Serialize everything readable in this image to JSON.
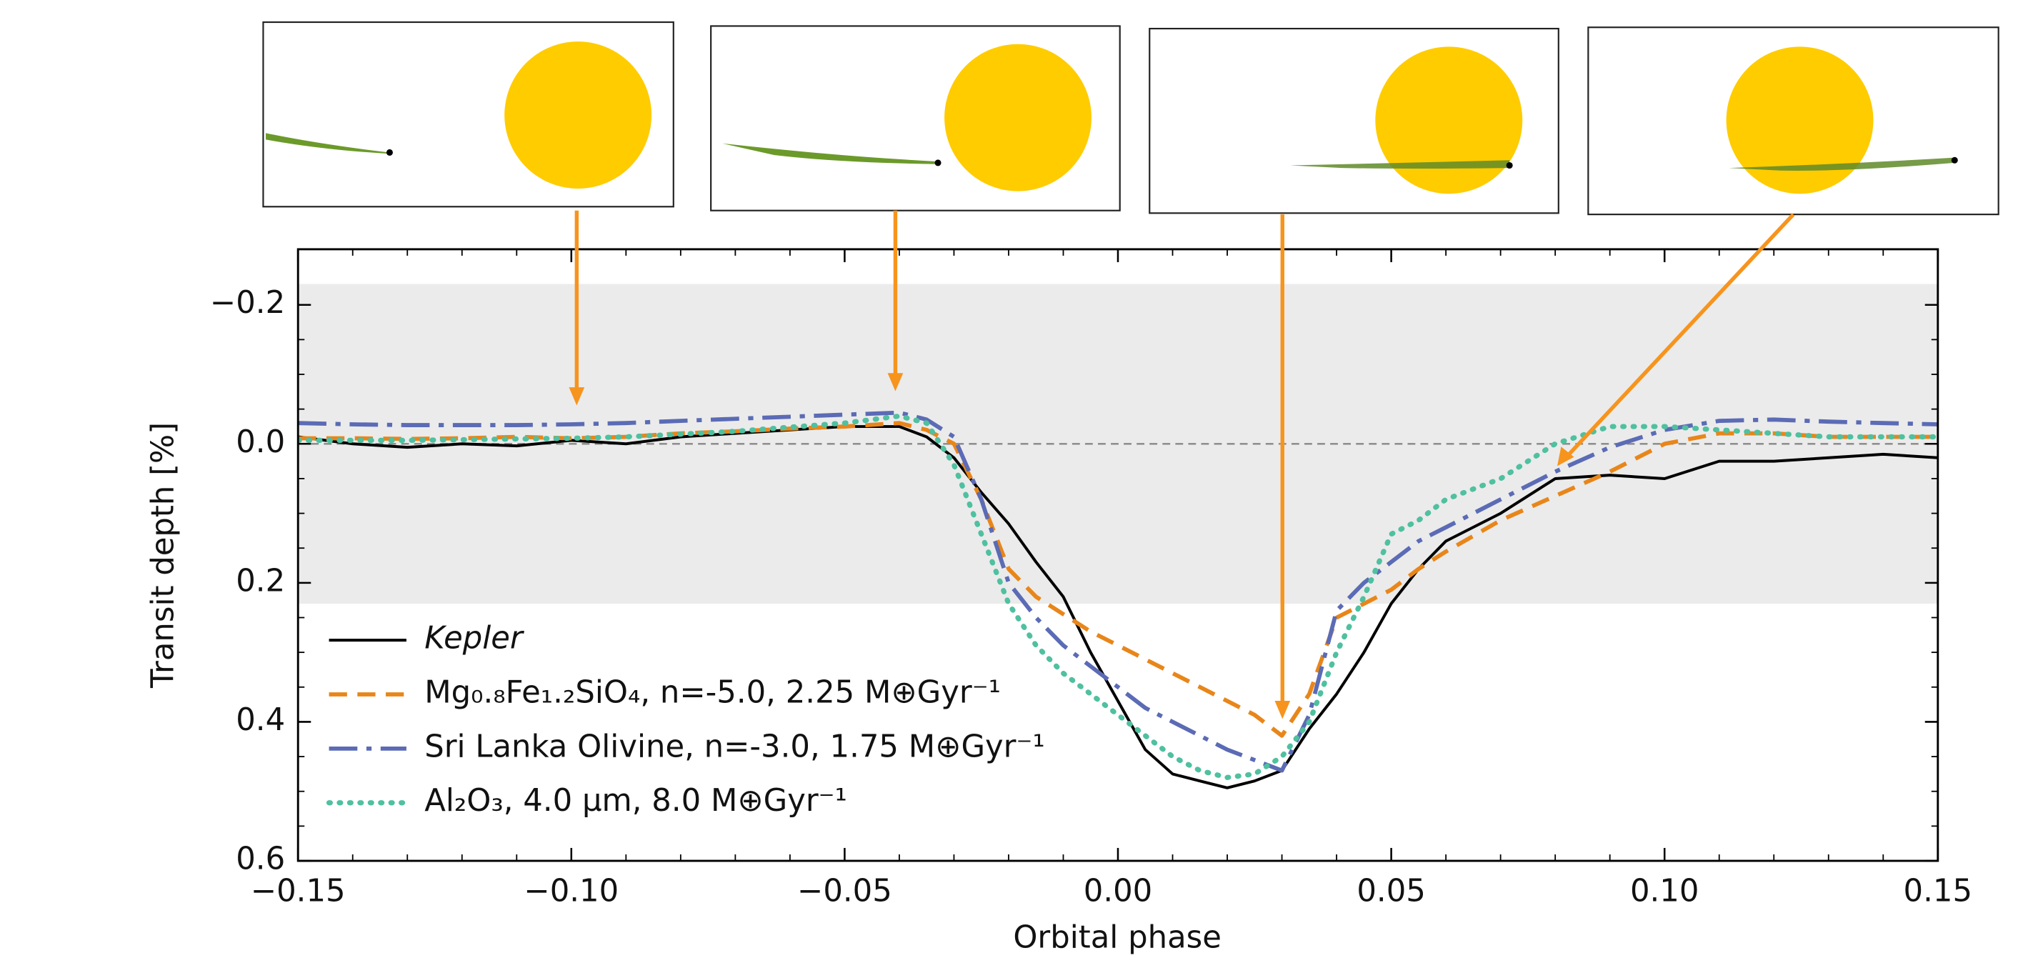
{
  "chart_data": {
    "type": "line",
    "xlabel": "Orbital phase",
    "ylabel": "Transit depth [%]",
    "xlim": [
      -0.15,
      0.15
    ],
    "ylim": [
      -0.28,
      0.6
    ],
    "y_inverted": true,
    "xticks": [
      {
        "value": -0.15,
        "label": "−0.15"
      },
      {
        "value": -0.1,
        "label": "−0.10"
      },
      {
        "value": -0.05,
        "label": "−0.05"
      },
      {
        "value": 0,
        "label": "0.00"
      },
      0.05,
      {
        "value": 0.1,
        "label": "0.10"
      },
      0.15
    ],
    "yticks": [
      {
        "value": -0.2,
        "label": "−0.2"
      },
      {
        "value": 0,
        "label": "0.0"
      },
      0.2,
      0.4,
      0.6
    ],
    "band": [
      -0.23,
      0.23
    ],
    "band_color": "#ebebeb",
    "reference_line": 0,
    "legend": "lower left",
    "x": [
      -0.15,
      -0.14,
      -0.13,
      -0.12,
      -0.11,
      -0.1,
      -0.09,
      -0.08,
      -0.07,
      -0.06,
      -0.05,
      -0.04,
      -0.035,
      -0.03,
      -0.025,
      -0.02,
      -0.015,
      -0.01,
      -0.005,
      0,
      0.005,
      0.01,
      0.015,
      0.02,
      0.025,
      0.03,
      0.035,
      0.04,
      0.045,
      0.05,
      0.055,
      0.06,
      0.07,
      0.08,
      0.09,
      0.1,
      0.11,
      0.12,
      0.13,
      0.14,
      0.15
    ],
    "series": [
      {
        "name": "Kepler",
        "color": "#000000",
        "dash": "",
        "width": 2.2,
        "values": [
          -0.01,
          0.0,
          0.005,
          0.0,
          0.003,
          -0.005,
          0.0,
          -0.01,
          -0.015,
          -0.02,
          -0.025,
          -0.025,
          -0.01,
          0.02,
          0.07,
          0.115,
          0.17,
          0.22,
          0.3,
          0.37,
          0.44,
          0.475,
          0.485,
          0.495,
          0.485,
          0.47,
          0.41,
          0.36,
          0.3,
          0.23,
          0.18,
          0.14,
          0.1,
          0.05,
          0.045,
          0.05,
          0.025,
          0.025,
          0.02,
          0.015,
          0.02
        ]
      },
      {
        "name": "Mg₀.₈Fe₁.₂SiO₄, n=-5.0, 2.25 M⊕Gyr⁻¹",
        "color": "#e8861a",
        "dash": "14,8",
        "width": 3.2,
        "values": [
          -0.008,
          -0.008,
          -0.007,
          -0.008,
          -0.01,
          -0.008,
          -0.01,
          -0.015,
          -0.018,
          -0.022,
          -0.025,
          -0.03,
          -0.02,
          0.0,
          0.08,
          0.18,
          0.22,
          0.245,
          0.27,
          0.29,
          0.31,
          0.33,
          0.35,
          0.37,
          0.39,
          0.42,
          0.36,
          0.25,
          0.23,
          0.21,
          0.18,
          0.155,
          0.11,
          0.075,
          0.04,
          0.0,
          -0.015,
          -0.015,
          -0.01,
          -0.01,
          -0.01
        ]
      },
      {
        "name": "Sri Lanka Olivine, n=-3.0, 1.75 M⊕Gyr⁻¹",
        "color": "#5b6bb5",
        "dash": "22,7,4,7",
        "width": 3.2,
        "values": [
          -0.03,
          -0.028,
          -0.027,
          -0.027,
          -0.027,
          -0.028,
          -0.03,
          -0.033,
          -0.036,
          -0.039,
          -0.042,
          -0.045,
          -0.035,
          -0.01,
          0.08,
          0.2,
          0.25,
          0.29,
          0.32,
          0.35,
          0.38,
          0.4,
          0.42,
          0.44,
          0.455,
          0.47,
          0.39,
          0.24,
          0.2,
          0.17,
          0.14,
          0.12,
          0.08,
          0.04,
          0.005,
          -0.02,
          -0.033,
          -0.035,
          -0.032,
          -0.03,
          -0.028
        ]
      },
      {
        "name": "Al₂O₃, 4.0 μm, 8.0 M⊕Gyr⁻¹",
        "color": "#4fc0a0",
        "dash": "1,7",
        "width": 4,
        "values": [
          -0.005,
          -0.005,
          -0.005,
          -0.006,
          -0.007,
          -0.008,
          -0.01,
          -0.014,
          -0.018,
          -0.024,
          -0.03,
          -0.04,
          -0.03,
          0.03,
          0.13,
          0.23,
          0.29,
          0.33,
          0.36,
          0.39,
          0.42,
          0.45,
          0.47,
          0.48,
          0.475,
          0.45,
          0.4,
          0.3,
          0.22,
          0.13,
          0.11,
          0.08,
          0.05,
          0.0,
          -0.025,
          -0.025,
          -0.02,
          -0.015,
          -0.01,
          -0.01,
          -0.01
        ]
      }
    ]
  }
}
